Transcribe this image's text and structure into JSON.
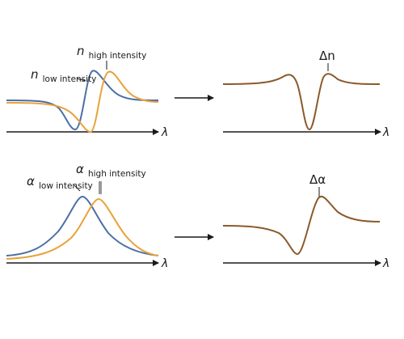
{
  "panels": {
    "top_left": {
      "label_a": {
        "symbol": "n",
        "subscript": "low intensity"
      },
      "label_b": {
        "symbol": "n",
        "subscript": "high intensity"
      },
      "x_axis": "λ"
    },
    "top_right": {
      "label": "Δn",
      "x_axis": "λ"
    },
    "bottom_left": {
      "label_a": {
        "symbol": "α",
        "subscript": "low intensity"
      },
      "label_b": {
        "symbol": "α",
        "subscript": "high intensity"
      },
      "x_axis": "λ"
    },
    "bottom_right": {
      "label": "Δα",
      "x_axis": "λ"
    }
  },
  "colors": {
    "low_intensity": "#4a6fa5",
    "high_intensity": "#e8a33a",
    "difference": "#8b5a2b",
    "axis": "#1a1a1a"
  }
}
